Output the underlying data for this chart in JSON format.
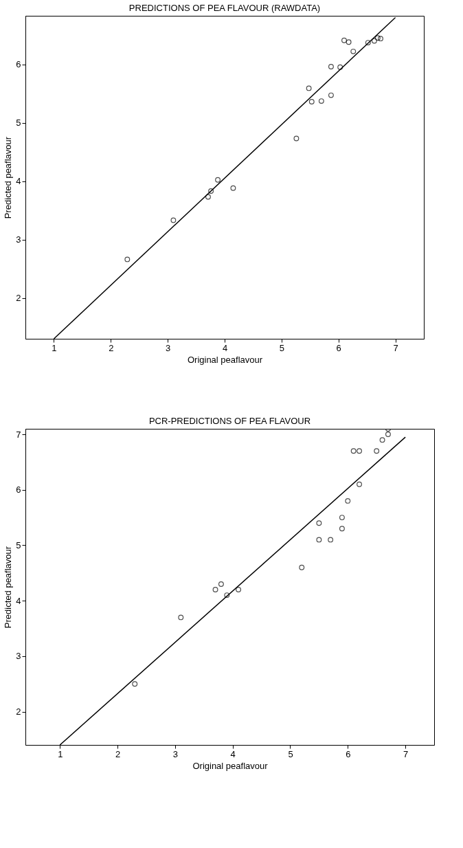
{
  "chart_data": [
    {
      "type": "scatter",
      "title": "PREDICTIONS OF PEA FLAVOUR (RAWDATA)",
      "xlabel": "Original peaflavour",
      "ylabel": "Predicted peaflavour",
      "xlim": [
        0.5,
        7.5
      ],
      "ylim": [
        1.3,
        6.83
      ],
      "xticks": [
        1,
        2,
        3,
        4,
        5,
        6,
        7
      ],
      "yticks": [
        2,
        3,
        4,
        5,
        6
      ],
      "grid": false,
      "series": [
        {
          "marker": "circle",
          "color": "#000000",
          "x": [
            2.29,
            3.1,
            3.71,
            3.76,
            3.88,
            4.15,
            5.26,
            5.48,
            5.53,
            5.7,
            5.87,
            5.87,
            6.03,
            6.1,
            6.18,
            6.26,
            6.52,
            6.63,
            6.69,
            6.74
          ],
          "values": [
            2.66,
            3.33,
            3.73,
            3.83,
            4.02,
            3.88,
            4.73,
            5.59,
            5.36,
            5.37,
            5.47,
            5.96,
            5.95,
            6.41,
            6.38,
            6.22,
            6.37,
            6.4,
            6.45,
            6.44
          ]
        },
        {
          "type": "line",
          "color": "#000000",
          "x": [
            1,
            7
          ],
          "values": [
            1.3,
            6.8
          ]
        }
      ]
    },
    {
      "type": "scatter",
      "title": "PCR-PREDICTIONS OF PEA FLAVOUR",
      "xlabel": "Original peaflavour",
      "ylabel": "Predicted peaflavour",
      "xlim": [
        0.4,
        7.5
      ],
      "ylim": [
        1.4,
        7.1
      ],
      "xticks": [
        1,
        2,
        3,
        4,
        5,
        6,
        7
      ],
      "yticks": [
        2,
        3,
        4,
        5,
        6,
        7
      ],
      "grid": false,
      "series": [
        {
          "marker": "circle",
          "color": "#000000",
          "x": [
            2.3,
            3.1,
            3.7,
            3.8,
            3.9,
            4.1,
            5.2,
            5.5,
            5.5,
            5.7,
            5.9,
            5.9,
            6.0,
            6.2,
            6.1,
            6.2,
            6.5,
            6.6,
            6.7,
            6.7
          ],
          "values": [
            2.5,
            3.7,
            4.2,
            4.3,
            4.1,
            4.2,
            4.6,
            5.4,
            5.1,
            5.1,
            5.5,
            5.3,
            5.8,
            6.1,
            6.7,
            6.7,
            6.7,
            6.9,
            7.0,
            7.1
          ]
        },
        {
          "type": "line",
          "color": "#000000",
          "x": [
            1,
            7
          ],
          "values": [
            1.4,
            6.95
          ]
        }
      ]
    }
  ]
}
